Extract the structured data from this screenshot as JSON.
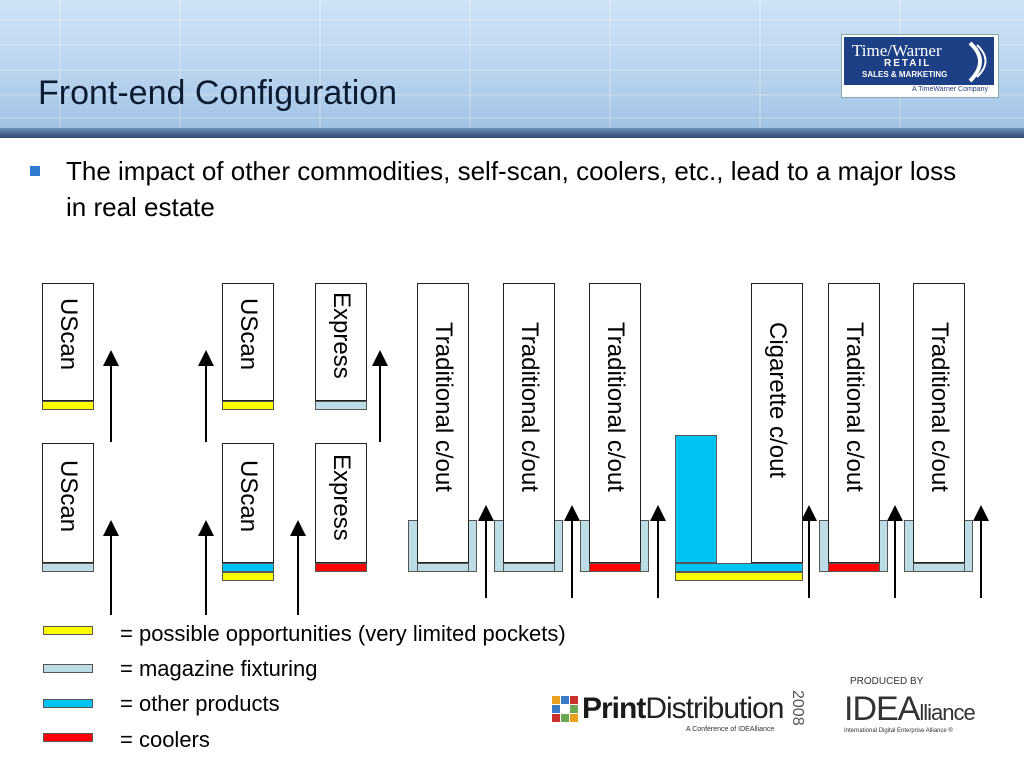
{
  "slide": {
    "title": "Front-end Configuration",
    "bullet": "The impact of other commodities, self-scan, coolers, etc., lead to a major loss in real estate"
  },
  "logos": {
    "timewarner": {
      "name": "Time/Warner",
      "retail": "RETAIL",
      "sales": "SALES & MARKETING",
      "company": "A TimeWarner Company"
    },
    "printdistribution": {
      "name_bold": "Print",
      "name_light": "Distribution",
      "tagline": "A Conference of IDEAlliance",
      "year": "2008"
    },
    "idealliance": {
      "produced_by": "PRODUCED BY",
      "name_a": "IDEA",
      "name_b": "lliance",
      "tagline": "International Digital Enterprise Alliance ®"
    }
  },
  "diagram": {
    "lanes": {
      "uscan_1": "UScan",
      "uscan_2": "UScan",
      "uscan_3": "UScan",
      "uscan_4": "UScan",
      "express_1": "Express",
      "express_2": "Express",
      "trad_1": "Traditional c/out",
      "trad_2": "Traditional c/out",
      "trad_3": "Traditional c/out",
      "cigarette": "Cigarette c/out",
      "trad_4": "Traditional c/out",
      "trad_5": "Traditional c/out"
    }
  },
  "legend": [
    {
      "color": "#ffff00",
      "label": "= possible opportunities (very limited pockets)"
    },
    {
      "color": "#bcdde6",
      "label": "= magazine fixturing"
    },
    {
      "color": "#00c2f5",
      "label": "= other products"
    },
    {
      "color": "#ff0000",
      "label": "= coolers"
    }
  ]
}
